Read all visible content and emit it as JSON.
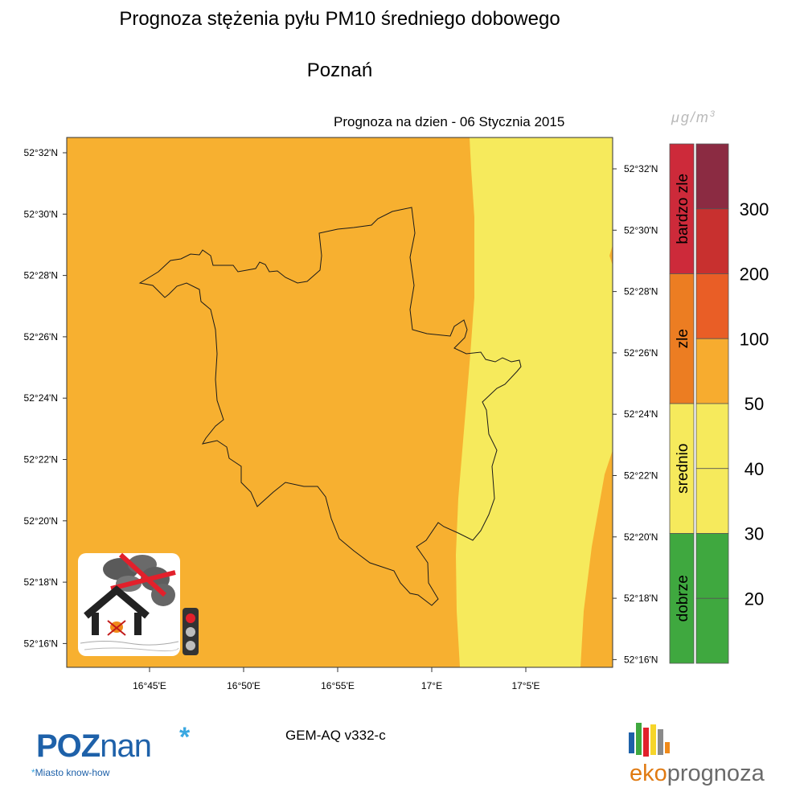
{
  "header": {
    "title": "Prognoza stężenia pyłu PM10 średniego dobowego",
    "subtitle": "Poznań",
    "forecast_date_label": "Prognoza na dzien -  06 Stycznia 2015"
  },
  "legend": {
    "unit_prefix": "μg/m",
    "unit_power": "3",
    "categories": [
      {
        "label": "bardzo zle",
        "color": "#cd2a3a"
      },
      {
        "label": "zle",
        "color": "#ec7d22"
      },
      {
        "label": "srednio",
        "color": "#f6ea5c"
      },
      {
        "label": "dobrze",
        "color": "#3fa83f"
      }
    ],
    "scale_colors": [
      "#8b2b42",
      "#c8302f",
      "#e95e26",
      "#f7ac2f",
      "#f6ea5c",
      "#f6ea5c",
      "#3fa83f",
      "#3fa83f"
    ],
    "scale_values": [
      "300",
      "200",
      "100",
      "50",
      "40",
      "30",
      "20"
    ]
  },
  "map": {
    "background_color": "#f7b030",
    "zone_color": "#f6ea5c",
    "left_lat_labels": [
      "52°32'N",
      "52°30'N",
      "52°28'N",
      "52°26'N",
      "52°24'N",
      "52°22'N",
      "52°20'N",
      "52°18'N",
      "52°16'N"
    ],
    "right_lat_labels": [
      "52°32'N",
      "52°30'N",
      "52°28'N",
      "52°26'N",
      "52°24'N",
      "52°22'N",
      "52°20'N",
      "52°18'N",
      "52°16'N"
    ],
    "lon_labels": [
      "16°45'E",
      "16°50'E",
      "16°55'E",
      "17°E",
      "17°5'E"
    ],
    "badge_icons": [
      "no-smoke-icon",
      "traffic-light-icon"
    ]
  },
  "footer": {
    "model": "GEM-AQ v332-c",
    "poznan_logo_main": "POZ",
    "poznan_logo_rest": "nan",
    "poznan_logo_star": "*",
    "poznan_tagline_star": "*",
    "poznan_tagline": "Miasto know-how",
    "eko_logo_part1": "eko",
    "eko_logo_part2": "prognoza"
  }
}
